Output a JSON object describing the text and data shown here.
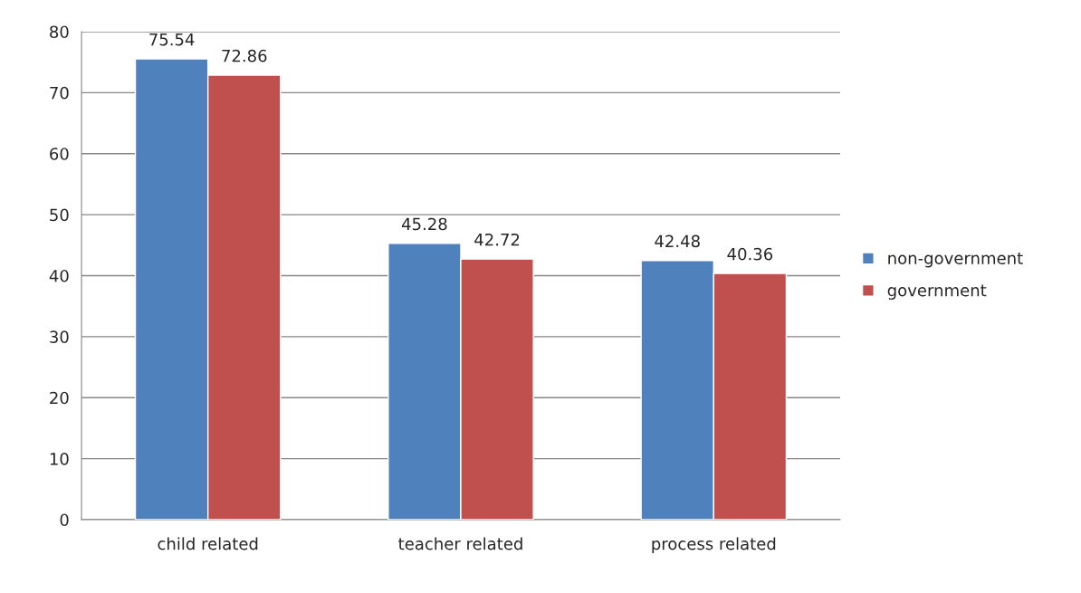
{
  "chart_data": {
    "type": "bar",
    "categories": [
      "child related",
      "teacher related",
      "process related"
    ],
    "series": [
      {
        "name": "non-government",
        "color": "#4f81bd",
        "values": [
          75.54,
          45.28,
          42.48
        ]
      },
      {
        "name": "government",
        "color": "#c0504d",
        "values": [
          72.86,
          42.72,
          40.36
        ]
      }
    ],
    "ylim": [
      0,
      80
    ],
    "yticks": [
      0,
      10,
      20,
      30,
      40,
      50,
      60,
      70,
      80
    ],
    "grid": "y",
    "legend": "right",
    "data_labels": true
  }
}
